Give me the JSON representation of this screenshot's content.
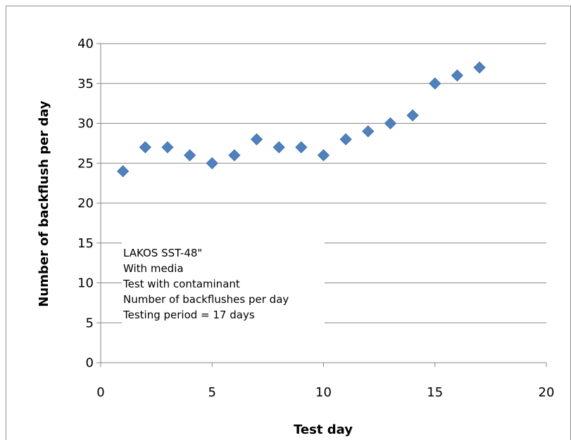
{
  "chart_data": {
    "type": "scatter",
    "title": "",
    "xlabel": "Test day",
    "ylabel": "Number of backflush per day",
    "xlim": [
      0,
      20
    ],
    "ylim": [
      0,
      40
    ],
    "xticks": [
      0,
      5,
      10,
      15,
      20
    ],
    "yticks": [
      0,
      5,
      10,
      15,
      20,
      25,
      30,
      35,
      40
    ],
    "grid": "horizontal",
    "legend": "none",
    "marker": "diamond",
    "marker_color": "#4F81BD",
    "series": [
      {
        "x": [
          1,
          2,
          3,
          4,
          5,
          6,
          7,
          8,
          9,
          10,
          11,
          12,
          13,
          14,
          15,
          16,
          17
        ],
        "y": [
          24,
          27,
          27,
          26,
          25,
          26,
          28,
          27,
          27,
          26,
          28,
          29,
          30,
          31,
          35,
          36,
          37
        ]
      }
    ],
    "annotation": [
      "LAKOS SST-48\"",
      "With media",
      "Test with contaminant",
      "Number of backflushes per day",
      "Testing period = 17 days"
    ]
  }
}
